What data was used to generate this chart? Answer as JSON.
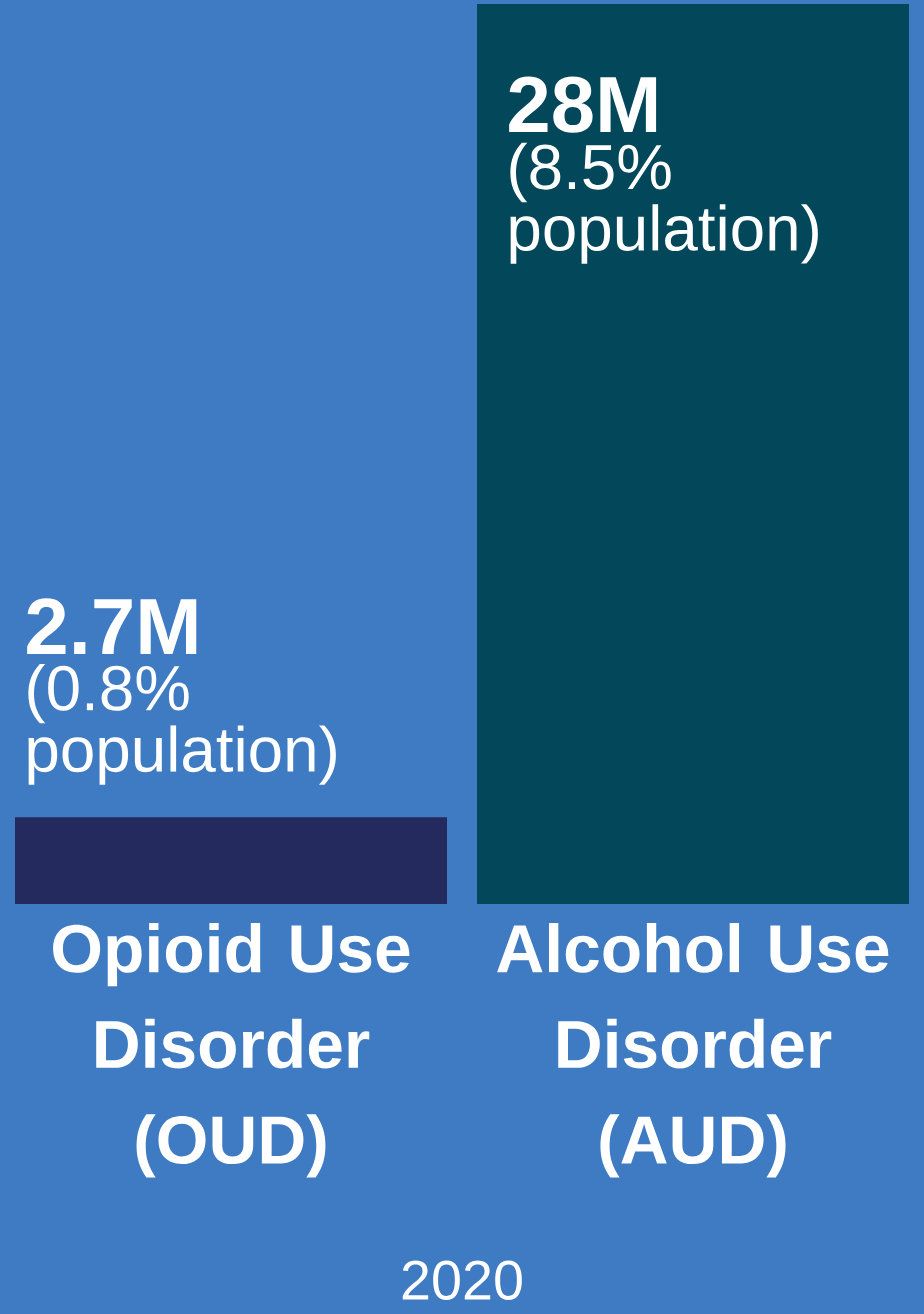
{
  "chart_data": {
    "type": "bar",
    "xlabel": "2020",
    "categories": [
      "Opioid Use Disorder (OUD)",
      "Alcohol Use Disorder (AUD)"
    ],
    "values": [
      2.7,
      28
    ],
    "colors": [
      "#252a5e",
      "#02475a"
    ],
    "value_labels": [
      "2.7M",
      "28M"
    ],
    "annotations": [
      {
        "text": "(0.8% population)",
        "x": "Opioid Use Disorder (OUD)",
        "y": 2.7
      },
      {
        "text": "(8.5% population)",
        "x": "Alcohol Use Disorder (AUD)",
        "y": 28
      }
    ]
  }
}
